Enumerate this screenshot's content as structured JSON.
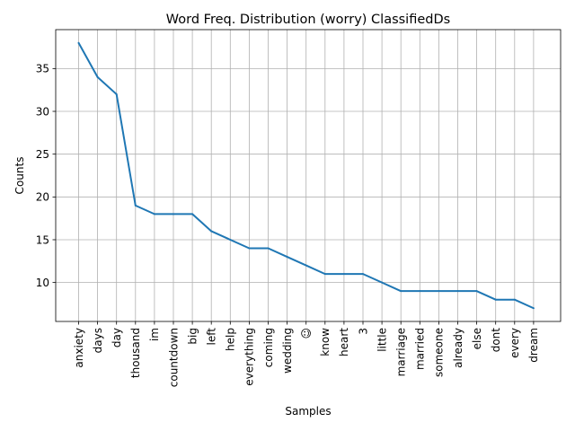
{
  "chart_data": {
    "type": "line",
    "title": "Word Freq. Distribution (worry) ClassifiedDs",
    "xlabel": "Samples",
    "ylabel": "Counts",
    "categories": [
      "anxiety",
      "days",
      "day",
      "thousand",
      "im",
      "countdown",
      "big",
      "left",
      "help",
      "everything",
      "coming",
      "wedding",
      "☺",
      "know",
      "heart",
      "3",
      "little",
      "marriage",
      "married",
      "someone",
      "already",
      "else",
      "dont",
      "every",
      "dream"
    ],
    "values": [
      38,
      34,
      32,
      19,
      18,
      18,
      18,
      16,
      15,
      14,
      14,
      13,
      12,
      11,
      11,
      11,
      10,
      9,
      9,
      9,
      9,
      9,
      8,
      8,
      7
    ],
    "ylim": [
      5.45,
      39.55
    ],
    "yticks": [
      10,
      15,
      20,
      25,
      30,
      35
    ],
    "grid": true,
    "line_color": "#1f77b4"
  }
}
